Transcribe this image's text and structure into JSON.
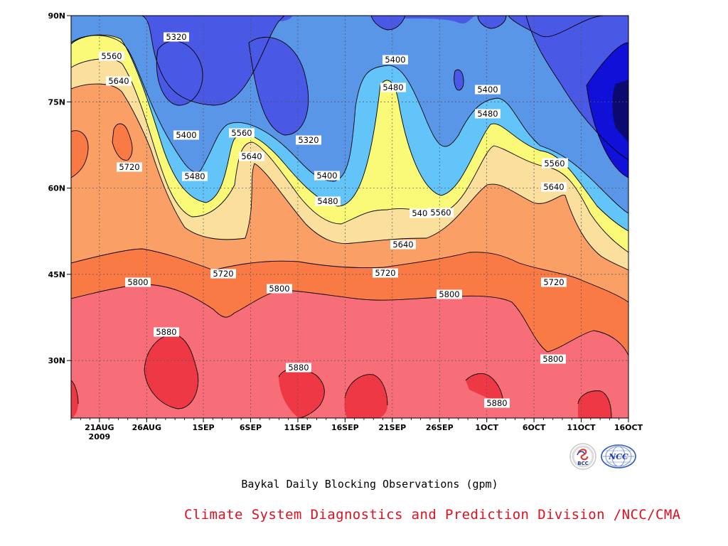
{
  "chart_data": {
    "type": "contour",
    "title": "Baykal Daily Blocking Observations (gpm)",
    "xlabel": "",
    "ylabel": "",
    "y_ticks": [
      "90N",
      "75N",
      "60N",
      "45N",
      "30N"
    ],
    "y_tick_values": [
      90,
      75,
      60,
      45,
      30
    ],
    "ylim": [
      20,
      90
    ],
    "x_ticks": [
      "21AUG",
      "26AUG",
      "1SEP",
      "6SEP",
      "11SEP",
      "16SEP",
      "21SEP",
      "26SEP",
      "1OCT",
      "6OCT",
      "11OCT",
      "16OCT"
    ],
    "x_tick_dates": [
      "2009-08-21",
      "2009-08-26",
      "2009-09-01",
      "2009-09-06",
      "2009-09-11",
      "2009-09-16",
      "2009-09-21",
      "2009-09-26",
      "2009-10-01",
      "2009-10-06",
      "2009-10-11",
      "2009-10-16"
    ],
    "x_year": "2009",
    "xlim": [
      "2009-08-18",
      "2009-10-16"
    ],
    "grid": true,
    "contour_levels": [
      5320,
      5400,
      5480,
      5560,
      5640,
      5720,
      5800,
      5880
    ],
    "contour_labels": [
      "5320",
      "5320",
      "5400",
      "5400",
      "5400",
      "5400",
      "5400",
      "5480",
      "5480",
      "5480",
      "5480",
      "5480",
      "5560",
      "5560",
      "5560",
      "5560",
      "5640",
      "5640",
      "5640",
      "5640",
      "5720",
      "5720",
      "5720",
      "5720",
      "5800",
      "5800",
      "5800",
      "5800",
      "5880",
      "5880",
      "5880"
    ],
    "colors": {
      "below_5320": "#1010d8",
      "5320_5400": "#4a58e6",
      "5400_5480": "#5a96e8",
      "5480_5560": "#62c4f8",
      "5560_5640": "#fafa78",
      "5640_5720": "#fae09c",
      "5720_5800": "#faa066",
      "5800_5880": "#fa7a46",
      "above_5880": "#f86e78",
      "peak": "#ee3846"
    }
  },
  "credit": "Climate System Diagnostics and Prediction Division /NCC/CMA",
  "logos": [
    "BCC",
    "NCC"
  ]
}
